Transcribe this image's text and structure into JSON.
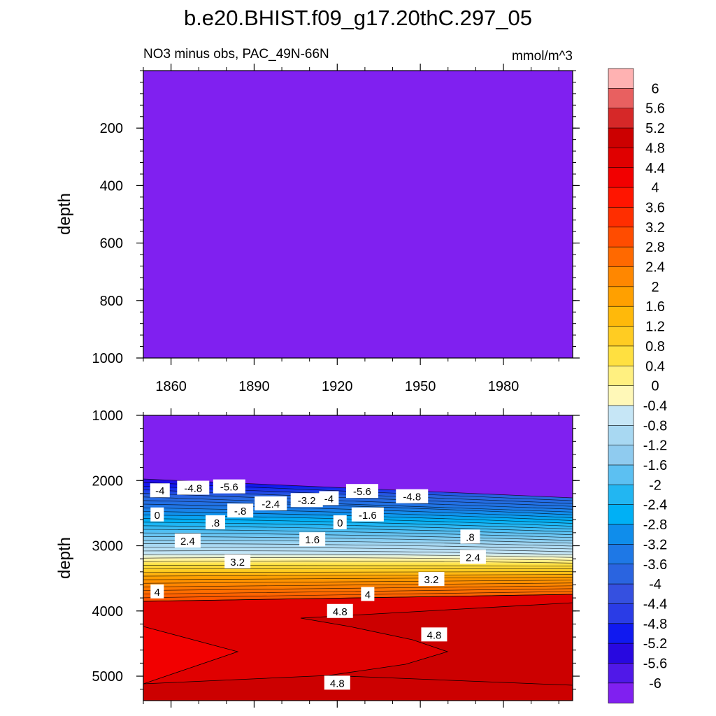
{
  "chart_data": {
    "type": "contour",
    "title": "b.e20.BHIST.f09_g17.20thC.297_05",
    "subtitle_left": "NO3 minus obs, PAC_49N-66N",
    "units": "mmol/m^3",
    "ylabel": "depth",
    "x_range": [
      1850,
      2005
    ],
    "x_ticks": [
      "1860",
      "1890",
      "1920",
      "1950",
      "1980"
    ],
    "colorbar": {
      "labels": [
        "6",
        "5.6",
        "5.2",
        "4.8",
        "4.4",
        "4",
        "3.6",
        "3.2",
        "2.8",
        "2.4",
        "2",
        "1.6",
        "1.2",
        "0.8",
        "0.4",
        "0",
        "-0.4",
        "-0.8",
        "-1.2",
        "-1.6",
        "-2",
        "-2.4",
        "-2.8",
        "-3.2",
        "-3.6",
        "-4",
        "-4.4",
        "-4.8",
        "-5.2",
        "-5.6",
        "-6"
      ],
      "colors": [
        "#FFB2B2",
        "#E86060",
        "#D62828",
        "#CC0000",
        "#E00000",
        "#F20000",
        "#FF1500",
        "#FF2E00",
        "#FF4C00",
        "#FF6900",
        "#FF8700",
        "#FFA000",
        "#FFB90A",
        "#FFCC22",
        "#FFE040",
        "#FFF080",
        "#FFF8B8",
        "#C6E6F6",
        "#A8D8F2",
        "#8FCBEF",
        "#5CC0F2",
        "#22B6F2",
        "#00B0F5",
        "#0F8DEB",
        "#1E78E6",
        "#2A64E0",
        "#3550E0",
        "#2A3CE6",
        "#1019F0",
        "#2808E0",
        "#5018E8",
        "#8020F0"
      ]
    },
    "panels": [
      {
        "name": "upper",
        "y_range": [
          0,
          1000
        ],
        "y_ticks": [
          "200",
          "400",
          "600",
          "800",
          "1000"
        ],
        "fill_value": "-6"
      },
      {
        "name": "lower",
        "y_range": [
          1000,
          5375
        ],
        "y_ticks": [
          "1000",
          "2000",
          "3000",
          "4000",
          "5000"
        ],
        "contour_labels": [
          {
            "text": "-4",
            "year": 1856,
            "depth": 2150
          },
          {
            "text": "-4.8",
            "year": 1868,
            "depth": 2110
          },
          {
            "text": "-5.6",
            "year": 1881,
            "depth": 2090
          },
          {
            "text": "-2.4",
            "year": 1896,
            "depth": 2350
          },
          {
            "text": "-.8",
            "year": 1885,
            "depth": 2460
          },
          {
            "text": "0",
            "year": 1855,
            "depth": 2520
          },
          {
            "text": ".8",
            "year": 1876,
            "depth": 2640
          },
          {
            "text": "2.4",
            "year": 1866,
            "depth": 2920
          },
          {
            "text": "3.2",
            "year": 1884,
            "depth": 3240
          },
          {
            "text": "4",
            "year": 1855,
            "depth": 3700
          },
          {
            "text": "-3.2",
            "year": 1909,
            "depth": 2300
          },
          {
            "text": "-4",
            "year": 1917,
            "depth": 2270
          },
          {
            "text": "-5.6",
            "year": 1929,
            "depth": 2160
          },
          {
            "text": "-4.8",
            "year": 1947,
            "depth": 2240
          },
          {
            "text": "-1.6",
            "year": 1931,
            "depth": 2520
          },
          {
            "text": "0",
            "year": 1921,
            "depth": 2640
          },
          {
            "text": "1.6",
            "year": 1911,
            "depth": 2900
          },
          {
            "text": ".8",
            "year": 1968,
            "depth": 2860
          },
          {
            "text": "2.4",
            "year": 1969,
            "depth": 3170
          },
          {
            "text": "3.2",
            "year": 1954,
            "depth": 3510
          },
          {
            "text": "4",
            "year": 1931,
            "depth": 3740
          },
          {
            "text": "4.8",
            "year": 1921,
            "depth": 4000
          },
          {
            "text": "4.8",
            "year": 1955,
            "depth": 4360
          },
          {
            "text": "4.8",
            "year": 1920,
            "depth": 5100
          }
        ]
      }
    ]
  }
}
